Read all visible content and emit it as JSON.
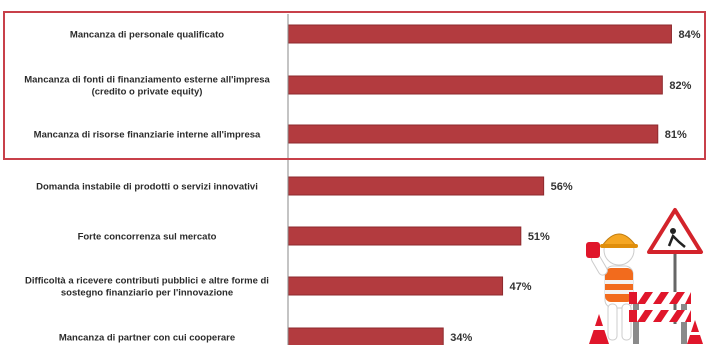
{
  "colors": {
    "bar": "#b33b3f",
    "bar_edge": "#8e2a2e",
    "highlight_box": "#c8404a",
    "axis": "#8a8a8a"
  },
  "chart_data": {
    "type": "bar",
    "orientation": "horizontal",
    "categories": [
      [
        "Mancanza di personale qualificato"
      ],
      [
        "Mancanza di fonti di finanziamento esterne all'impresa",
        "(credito o private equity)"
      ],
      [
        "Mancanza di risorse finanziarie interne all'impresa"
      ],
      [
        "Domanda instabile di prodotti o servizi innovativi"
      ],
      [
        "Forte concorrenza sul mercato"
      ],
      [
        "Difficoltà a ricevere contributi pubblici e altre forme di",
        "sostegno finanziario per l'innovazione"
      ],
      [
        "Mancanza di partner con cui cooperare"
      ]
    ],
    "values": [
      84,
      82,
      81,
      56,
      51,
      47,
      34
    ],
    "value_labels": [
      "84%",
      "82%",
      "81%",
      "56%",
      "51%",
      "47%",
      "34%"
    ],
    "xlim": [
      0,
      100
    ],
    "highlighted_categories": [
      0,
      1,
      2
    ],
    "grid": false,
    "legend": "none"
  },
  "illustration": {
    "icon": "construction-worker-icon",
    "sign_icon": "road-works-sign-icon"
  }
}
